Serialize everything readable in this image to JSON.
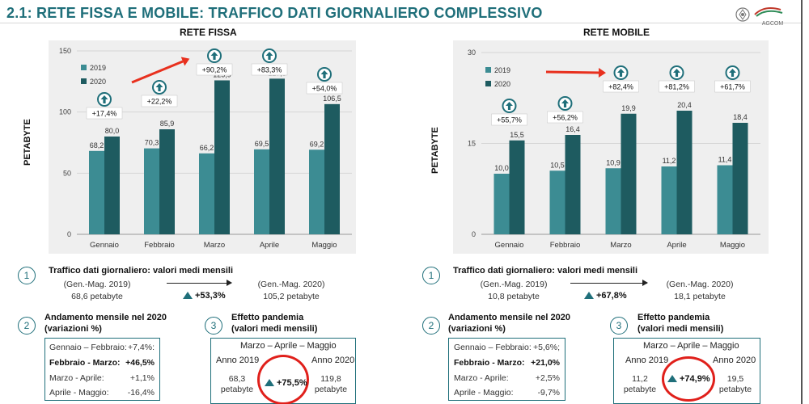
{
  "title": "2.1: RETE FISSA E MOBILE: TRAFFICO DATI GIORNALIERO COMPLESSIVO",
  "logo_text": "AGCOM",
  "colors": {
    "y2019": "#3c8c93",
    "y2020": "#1e5b60",
    "accent": "#1f6f7a",
    "arrow": "#e8301e"
  },
  "chart_data": [
    {
      "type": "bar",
      "title": "RETE FISSA",
      "ylabel": "PETABYTE",
      "ylim": [
        0,
        150
      ],
      "yticks": [
        0,
        50,
        100,
        150
      ],
      "categories": [
        "Gennaio",
        "Febbraio",
        "Marzo",
        "Aprile",
        "Maggio"
      ],
      "series": [
        {
          "name": "2019",
          "values": [
            68.2,
            70.3,
            66.2,
            69.5,
            69.2
          ],
          "labels": [
            "68,2",
            "70,3",
            "66,2",
            "69,5",
            "69,2"
          ]
        },
        {
          "name": "2020",
          "values": [
            80.0,
            85.9,
            125.9,
            127.3,
            106.5
          ],
          "labels": [
            "80,0",
            "85,9",
            "125,9",
            "127,3",
            "106,5"
          ]
        }
      ],
      "annotations": [
        "+17,4%",
        "+22,2%",
        "+90,2%",
        "+83,3%",
        "+54,0%"
      ],
      "legend": "top-left"
    },
    {
      "type": "bar",
      "title": "RETE MOBILE",
      "ylabel": "PETABYTE",
      "ylim": [
        0,
        30
      ],
      "yticks": [
        0,
        15,
        30
      ],
      "categories": [
        "Gennaio",
        "Febbraio",
        "Marzo",
        "Aprile",
        "Maggio"
      ],
      "series": [
        {
          "name": "2019",
          "values": [
            10.0,
            10.5,
            10.9,
            11.2,
            11.4
          ],
          "labels": [
            "10,0",
            "10,5",
            "10,9",
            "11,2",
            "11,4"
          ]
        },
        {
          "name": "2020",
          "values": [
            15.5,
            16.4,
            19.9,
            20.4,
            18.4
          ],
          "labels": [
            "15,5",
            "16,4",
            "19,9",
            "20,4",
            "18,4"
          ]
        }
      ],
      "annotations": [
        "+55,7%",
        "+56,2%",
        "+82,4%",
        "+81,2%",
        "+61,7%"
      ],
      "legend": "top-left"
    }
  ],
  "fissa": {
    "s1": {
      "num": "1",
      "title": "Traffico dati giornaliero: valori medi mensili",
      "from_period": "(Gen.-Mag. 2019)",
      "from_value": "68,6 petabyte",
      "pct": "+53,3%",
      "to_period": "(Gen.-Mag. 2020)",
      "to_value": "105,2 petabyte"
    },
    "s2": {
      "num": "2",
      "title": "Andamento mensile nel 2020",
      "subtitle": "(variazioni %)",
      "rows": [
        {
          "label": "Gennaio – Febbraio:",
          "value": "+7,4%:"
        },
        {
          "label": "Febbraio - Marzo:",
          "value": "+46,5%"
        },
        {
          "label": "Marzo - Aprile:",
          "value": "+1,1%"
        },
        {
          "label": "Aprile - Maggio:",
          "value": "-16,4%"
        }
      ]
    },
    "s3": {
      "num": "3",
      "title": "Effetto pandemia",
      "subtitle": "(valori medi mensili)",
      "months": "Marzo – Aprile – Maggio",
      "year_a": "Anno 2019",
      "year_b": "Anno 2020",
      "value_a": "68,3",
      "value_b": "119,8",
      "unit": "petabyte",
      "pct": "+75,5%"
    }
  },
  "mobile": {
    "s1": {
      "num": "1",
      "title": "Traffico dati giornaliero: valori medi mensili",
      "from_period": "(Gen.-Mag. 2019)",
      "from_value": "10,8 petabyte",
      "pct": "+67,8%",
      "to_period": "(Gen.-Mag. 2020)",
      "to_value": "18,1 petabyte"
    },
    "s2": {
      "num": "2",
      "title": "Andamento mensile nel 2020",
      "subtitle": "(variazioni %)",
      "rows": [
        {
          "label": "Gennaio – Febbraio:",
          "value": "+5,6%;"
        },
        {
          "label": "Febbraio - Marzo:",
          "value": "+21,0%"
        },
        {
          "label": "Marzo - Aprile:",
          "value": "+2,5%"
        },
        {
          "label": "Aprile - Maggio:",
          "value": "-9,7%"
        }
      ]
    },
    "s3": {
      "num": "3",
      "title": "Effetto pandemia",
      "subtitle": "(valori medi mensili)",
      "months": "Marzo – Aprile – Maggio",
      "year_a": "Anno 2019",
      "year_b": "Anno 2020",
      "value_a": "11,2",
      "value_b": "19,5",
      "unit": "petabyte",
      "pct": "+74,9%"
    }
  }
}
